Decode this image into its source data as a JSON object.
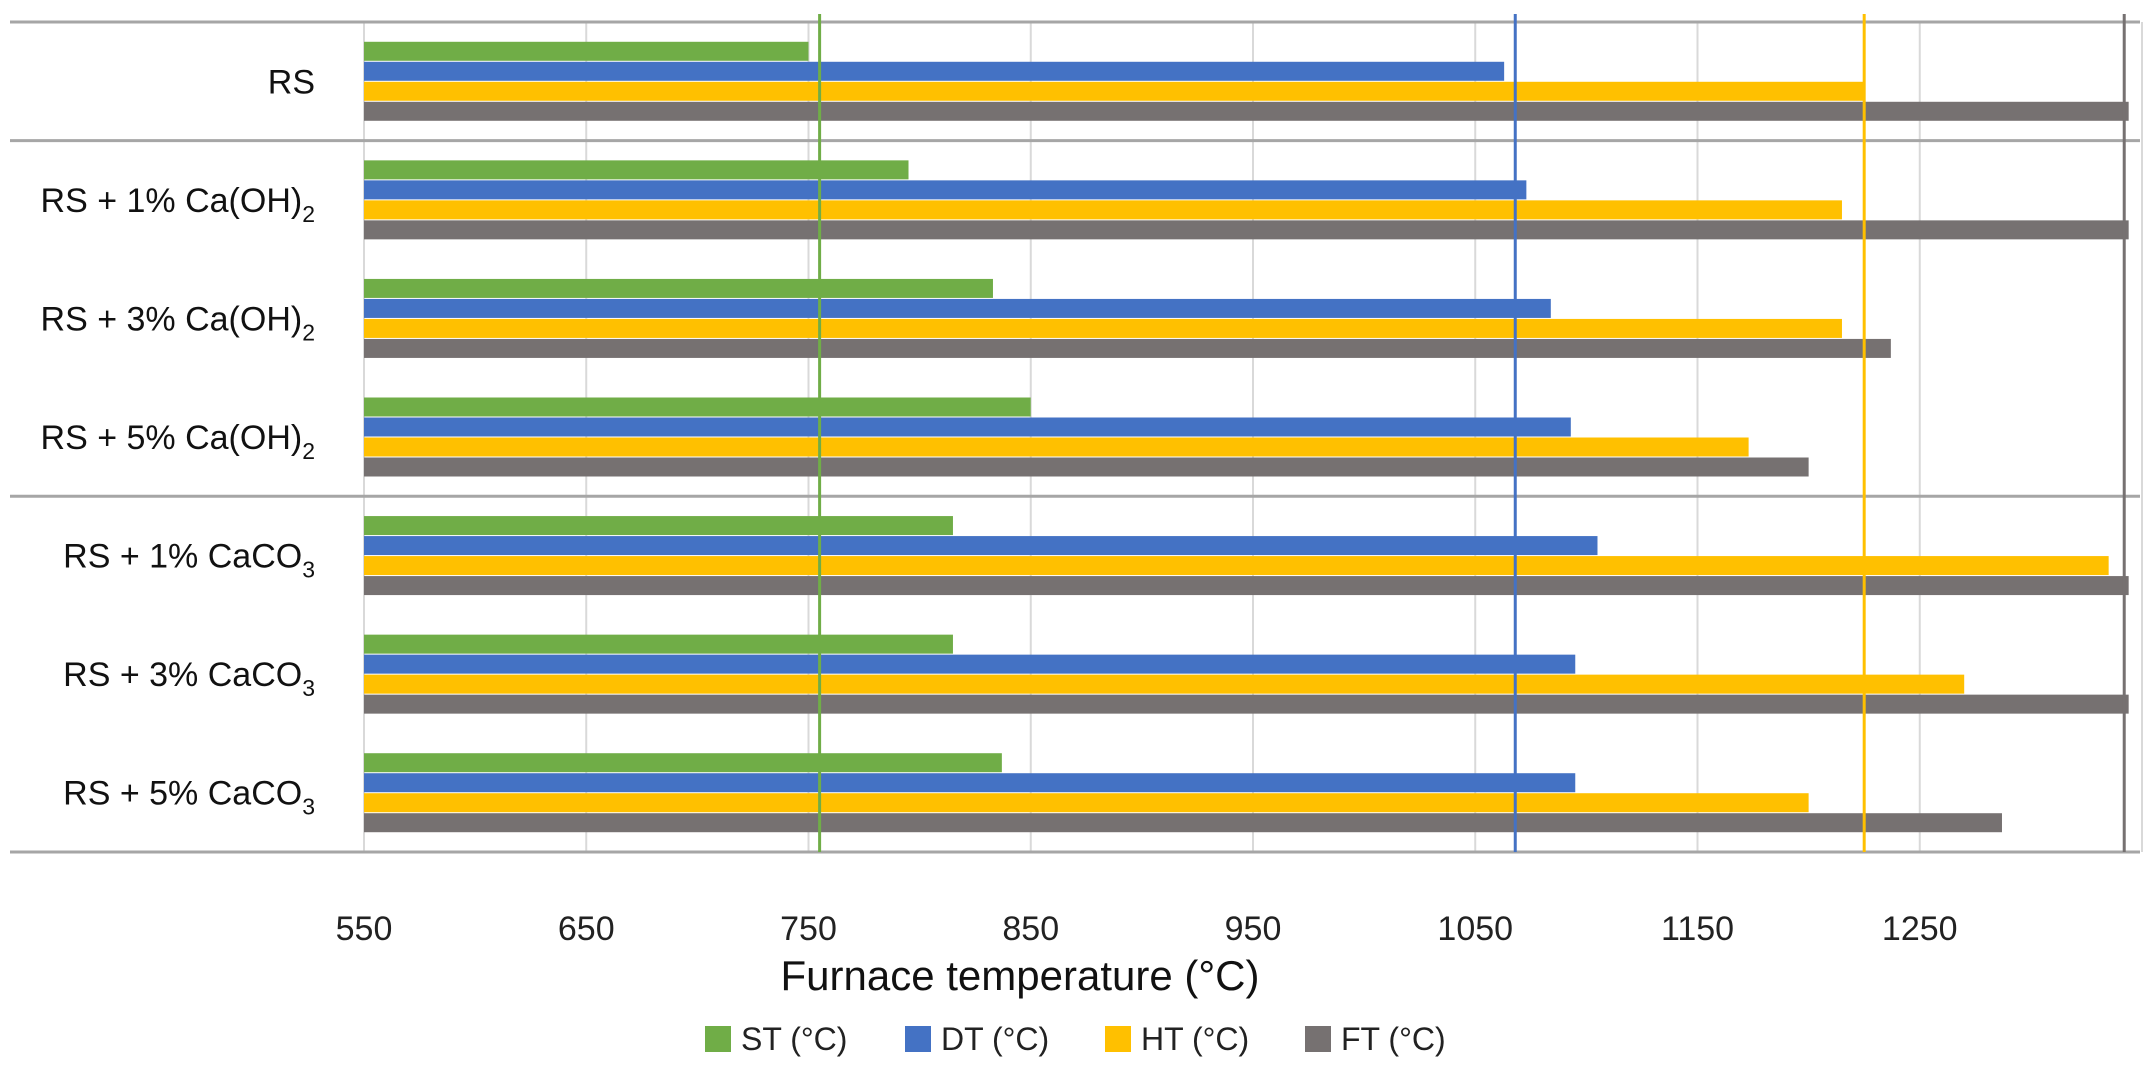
{
  "chart_data": {
    "type": "bar",
    "orientation": "horizontal",
    "title": "",
    "xlabel": "Furnace temperature (°C)",
    "ylabel": "",
    "xlim": [
      550,
      1350
    ],
    "xticks": [
      550,
      650,
      750,
      850,
      950,
      1050,
      1150,
      1250
    ],
    "grid": true,
    "legend_position": "bottom",
    "categories": [
      {
        "main": "RS",
        "sub": "",
        "tail": ""
      },
      {
        "main": "RS + 1% Ca(OH)",
        "sub": "2",
        "tail": ""
      },
      {
        "main": "RS + 3% Ca(OH)",
        "sub": "2",
        "tail": ""
      },
      {
        "main": "RS + 5% Ca(OH)",
        "sub": "2",
        "tail": ""
      },
      {
        "main": "RS + 1% CaCO",
        "sub": "3",
        "tail": ""
      },
      {
        "main": "RS + 3% CaCO",
        "sub": "3",
        "tail": ""
      },
      {
        "main": "RS + 5% CaCO",
        "sub": "3",
        "tail": ""
      }
    ],
    "series": [
      {
        "name": "ST (°C)",
        "color": "#70ad47",
        "values": [
          750,
          795,
          833,
          850,
          815,
          815,
          837
        ]
      },
      {
        "name": "DT (°C)",
        "color": "#4472c4",
        "values": [
          1063,
          1073,
          1084,
          1093,
          1105,
          1095,
          1095
        ]
      },
      {
        "name": "HT (°C)",
        "color": "#ffc000",
        "values": [
          1225,
          1215,
          1215,
          1173,
          1335,
          1270,
          1200
        ]
      },
      {
        "name": "FT (°C)",
        "color": "#767171",
        "values": [
          1344,
          1344,
          1237,
          1200,
          1344,
          1344,
          1287
        ]
      }
    ],
    "reference_lines": [
      {
        "series": "ST (°C)",
        "value": 755,
        "color": "#70ad47"
      },
      {
        "series": "DT (°C)",
        "value": 1068,
        "color": "#4472c4"
      },
      {
        "series": "HT (°C)",
        "value": 1225,
        "color": "#ffc000"
      },
      {
        "series": "FT (°C)",
        "value": 1342,
        "color": "#767171"
      }
    ],
    "group_separators_after": [
      0,
      3
    ]
  }
}
